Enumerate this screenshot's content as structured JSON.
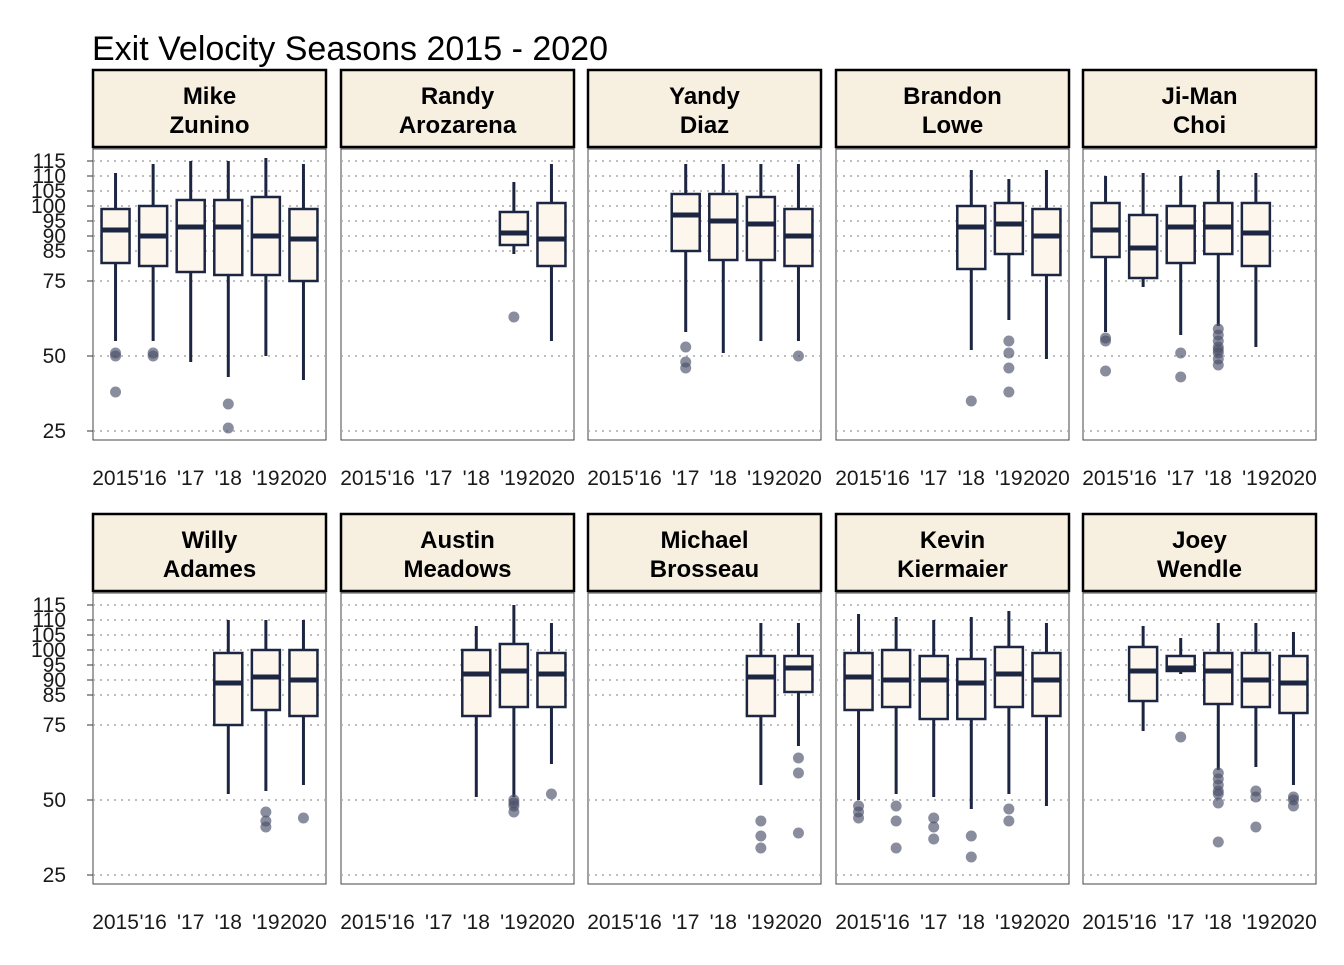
{
  "chart_data": {
    "type": "boxplot",
    "title": "Exit Velocity Seasons 2015 - 2020",
    "xlabel": "",
    "ylabel": "",
    "categories": [
      "2015",
      "'16",
      "'17",
      "'18",
      "'19",
      "2020"
    ],
    "y_ticks": [
      25,
      50,
      75,
      85,
      90,
      95,
      100,
      105,
      110,
      115
    ],
    "ylim": [
      22,
      119
    ],
    "grid": "horizontal dotted",
    "colors": {
      "box_fill": "#fdf6ec",
      "box_stroke": "#1c2541",
      "outlier": "#4a5068",
      "grid": "#a8a8a8",
      "panel_border": "#444444",
      "strip_fill": "#f7f0e1",
      "strip_border": "#000000"
    },
    "panels": [
      {
        "name": "Mike\nZunino",
        "boxes": [
          {
            "cat": "2015",
            "whisker_low": 55,
            "q1": 81,
            "median": 92,
            "q3": 99,
            "whisker_high": 111,
            "outliers": [
              51,
              50,
              38
            ]
          },
          {
            "cat": "'16",
            "whisker_low": 55,
            "q1": 80,
            "median": 90,
            "q3": 100,
            "whisker_high": 114,
            "outliers": [
              51,
              50
            ]
          },
          {
            "cat": "'17",
            "whisker_low": 48,
            "q1": 78,
            "median": 93,
            "q3": 102,
            "whisker_high": 115,
            "outliers": []
          },
          {
            "cat": "'18",
            "whisker_low": 43,
            "q1": 77,
            "median": 93,
            "q3": 102,
            "whisker_high": 115,
            "outliers": [
              34,
              26
            ]
          },
          {
            "cat": "'19",
            "whisker_low": 50,
            "q1": 77,
            "median": 90,
            "q3": 103,
            "whisker_high": 116,
            "outliers": []
          },
          {
            "cat": "2020",
            "whisker_low": 42,
            "q1": 75,
            "median": 89,
            "q3": 99,
            "whisker_high": 114,
            "outliers": []
          }
        ]
      },
      {
        "name": "Randy\nArozarena",
        "boxes": [
          {
            "cat": "'19",
            "whisker_low": 84,
            "q1": 87,
            "median": 91,
            "q3": 98,
            "whisker_high": 108,
            "outliers": [
              63
            ]
          },
          {
            "cat": "2020",
            "whisker_low": 55,
            "q1": 80,
            "median": 89,
            "q3": 101,
            "whisker_high": 114,
            "outliers": []
          }
        ]
      },
      {
        "name": "Yandy\nDiaz",
        "boxes": [
          {
            "cat": "'17",
            "whisker_low": 58,
            "q1": 85,
            "median": 97,
            "q3": 104,
            "whisker_high": 114,
            "outliers": [
              53,
              48,
              46
            ]
          },
          {
            "cat": "'18",
            "whisker_low": 51,
            "q1": 82,
            "median": 95,
            "q3": 104,
            "whisker_high": 114,
            "outliers": []
          },
          {
            "cat": "'19",
            "whisker_low": 55,
            "q1": 82,
            "median": 94,
            "q3": 103,
            "whisker_high": 114,
            "outliers": []
          },
          {
            "cat": "2020",
            "whisker_low": 55,
            "q1": 80,
            "median": 90,
            "q3": 99,
            "whisker_high": 114,
            "outliers": [
              50
            ]
          }
        ]
      },
      {
        "name": "Brandon\nLowe",
        "boxes": [
          {
            "cat": "'18",
            "whisker_low": 52,
            "q1": 79,
            "median": 93,
            "q3": 100,
            "whisker_high": 112,
            "outliers": [
              35
            ]
          },
          {
            "cat": "'19",
            "whisker_low": 62,
            "q1": 84,
            "median": 94,
            "q3": 101,
            "whisker_high": 109,
            "outliers": [
              55,
              51,
              46,
              38
            ]
          },
          {
            "cat": "2020",
            "whisker_low": 49,
            "q1": 77,
            "median": 90,
            "q3": 99,
            "whisker_high": 112,
            "outliers": []
          }
        ]
      },
      {
        "name": "Ji-Man\nChoi",
        "boxes": [
          {
            "cat": "2015",
            "whisker_low": 58,
            "q1": 83,
            "median": 92,
            "q3": 101,
            "whisker_high": 110,
            "outliers": [
              56,
              55,
              45
            ]
          },
          {
            "cat": "'16",
            "whisker_low": 73,
            "q1": 76,
            "median": 86,
            "q3": 97,
            "whisker_high": 111,
            "outliers": []
          },
          {
            "cat": "'17",
            "whisker_low": 57,
            "q1": 81,
            "median": 93,
            "q3": 100,
            "whisker_high": 110,
            "outliers": [
              51,
              43
            ]
          },
          {
            "cat": "'18",
            "whisker_low": 60,
            "q1": 84,
            "median": 93,
            "q3": 101,
            "whisker_high": 112,
            "outliers": [
              59,
              57,
              55,
              53,
              52,
              51,
              49,
              47
            ]
          },
          {
            "cat": "'19",
            "whisker_low": 53,
            "q1": 80,
            "median": 91,
            "q3": 101,
            "whisker_high": 111,
            "outliers": []
          }
        ]
      },
      {
        "name": "Willy\nAdames",
        "boxes": [
          {
            "cat": "'18",
            "whisker_low": 52,
            "q1": 75,
            "median": 89,
            "q3": 99,
            "whisker_high": 110,
            "outliers": []
          },
          {
            "cat": "'19",
            "whisker_low": 53,
            "q1": 80,
            "median": 91,
            "q3": 100,
            "whisker_high": 110,
            "outliers": [
              46,
              43,
              41
            ]
          },
          {
            "cat": "2020",
            "whisker_low": 55,
            "q1": 78,
            "median": 90,
            "q3": 100,
            "whisker_high": 110,
            "outliers": [
              44
            ]
          }
        ]
      },
      {
        "name": "Austin\nMeadows",
        "boxes": [
          {
            "cat": "'18",
            "whisker_low": 51,
            "q1": 78,
            "median": 92,
            "q3": 100,
            "whisker_high": 108,
            "outliers": []
          },
          {
            "cat": "'19",
            "whisker_low": 51,
            "q1": 81,
            "median": 93,
            "q3": 102,
            "whisker_high": 115,
            "outliers": [
              50,
              49,
              48,
              46
            ]
          },
          {
            "cat": "2020",
            "whisker_low": 62,
            "q1": 81,
            "median": 92,
            "q3": 99,
            "whisker_high": 109,
            "outliers": [
              52
            ]
          }
        ]
      },
      {
        "name": "Michael\nBrosseau",
        "boxes": [
          {
            "cat": "'19",
            "whisker_low": 55,
            "q1": 78,
            "median": 91,
            "q3": 98,
            "whisker_high": 109,
            "outliers": [
              43,
              38,
              34
            ]
          },
          {
            "cat": "2020",
            "whisker_low": 68,
            "q1": 86,
            "median": 94,
            "q3": 98,
            "whisker_high": 109,
            "outliers": [
              64,
              59,
              39
            ]
          }
        ]
      },
      {
        "name": "Kevin\nKiermaier",
        "boxes": [
          {
            "cat": "2015",
            "whisker_low": 50,
            "q1": 80,
            "median": 91,
            "q3": 99,
            "whisker_high": 112,
            "outliers": [
              48,
              46,
              44
            ]
          },
          {
            "cat": "'16",
            "whisker_low": 52,
            "q1": 81,
            "median": 90,
            "q3": 100,
            "whisker_high": 111,
            "outliers": [
              48,
              43,
              34
            ]
          },
          {
            "cat": "'17",
            "whisker_low": 51,
            "q1": 77,
            "median": 90,
            "q3": 98,
            "whisker_high": 110,
            "outliers": [
              44,
              41,
              37
            ]
          },
          {
            "cat": "'18",
            "whisker_low": 47,
            "q1": 77,
            "median": 89,
            "q3": 97,
            "whisker_high": 111,
            "outliers": [
              38,
              31
            ]
          },
          {
            "cat": "'19",
            "whisker_low": 52,
            "q1": 81,
            "median": 92,
            "q3": 101,
            "whisker_high": 113,
            "outliers": [
              47,
              43
            ]
          },
          {
            "cat": "2020",
            "whisker_low": 48,
            "q1": 78,
            "median": 90,
            "q3": 99,
            "whisker_high": 109,
            "outliers": []
          }
        ]
      },
      {
        "name": "Joey\nWendle",
        "boxes": [
          {
            "cat": "'16",
            "whisker_low": 73,
            "q1": 83,
            "median": 93,
            "q3": 101,
            "whisker_high": 108,
            "outliers": []
          },
          {
            "cat": "'17",
            "whisker_low": 92,
            "q1": 93,
            "median": 94,
            "q3": 98,
            "whisker_high": 104,
            "outliers": [
              71
            ]
          },
          {
            "cat": "'18",
            "whisker_low": 60,
            "q1": 82,
            "median": 93,
            "q3": 99,
            "whisker_high": 109,
            "outliers": [
              59,
              57,
              55,
              53,
              52,
              49,
              36
            ]
          },
          {
            "cat": "'19",
            "whisker_low": 61,
            "q1": 81,
            "median": 90,
            "q3": 99,
            "whisker_high": 109,
            "outliers": [
              53,
              51,
              41
            ]
          },
          {
            "cat": "2020",
            "whisker_low": 55,
            "q1": 79,
            "median": 89,
            "q3": 98,
            "whisker_high": 106,
            "outliers": [
              51,
              50,
              48
            ]
          }
        ]
      }
    ]
  }
}
